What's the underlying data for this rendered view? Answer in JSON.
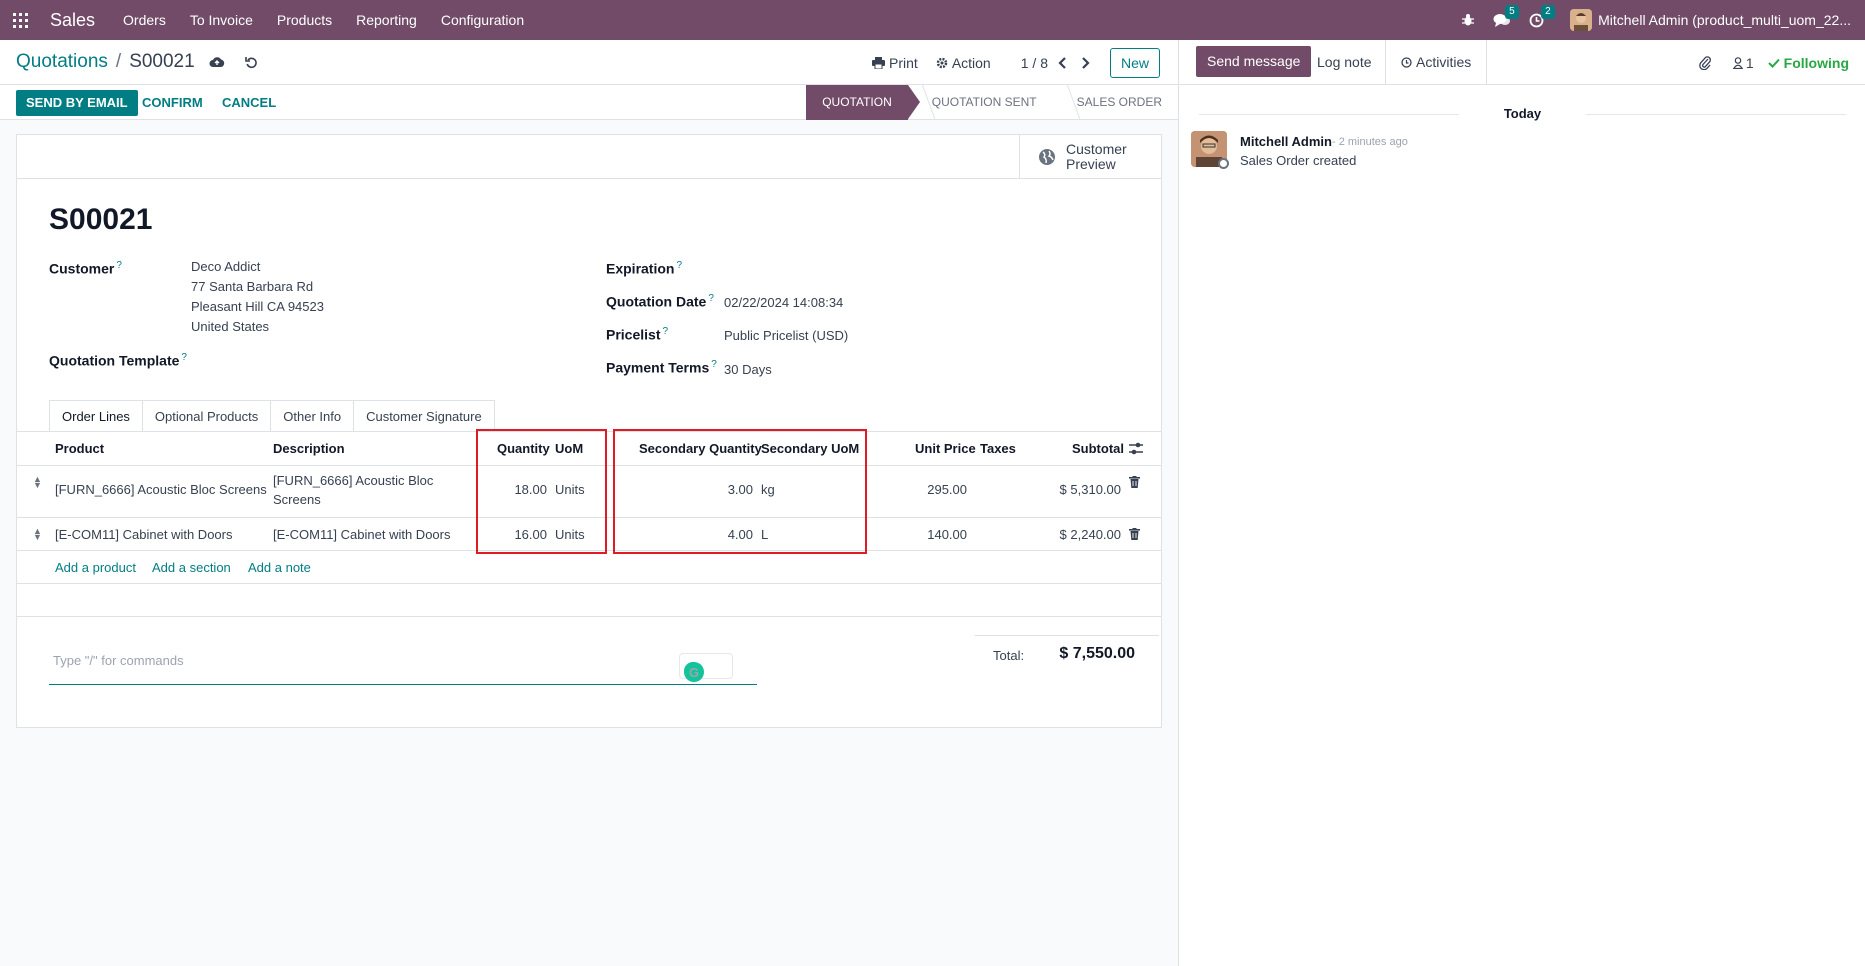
{
  "topbar": {
    "app": "Sales",
    "menu": [
      "Orders",
      "To Invoice",
      "Products",
      "Reporting",
      "Configuration"
    ],
    "messages_count": "5",
    "activities_count": "2",
    "user": "Mitchell Admin (product_multi_uom_22..."
  },
  "control_panel": {
    "breadcrumb_parent": "Quotations",
    "breadcrumb_current": "S00021",
    "print": "Print",
    "action": "Action",
    "pager": "1 / 8",
    "new": "New"
  },
  "statusbar": {
    "send_by_email": "SEND BY EMAIL",
    "confirm": "CONFIRM",
    "cancel": "CANCEL",
    "stages": [
      "QUOTATION",
      "QUOTATION SENT",
      "SALES ORDER"
    ]
  },
  "form": {
    "customer_preview": "Customer Preview",
    "name": "S00021",
    "customer_label": "Customer",
    "customer_lines": [
      "Deco Addict",
      "77 Santa Barbara Rd",
      "Pleasant Hill CA 94523",
      "United States"
    ],
    "template_label": "Quotation Template",
    "expiration_label": "Expiration",
    "quotation_date_label": "Quotation Date",
    "quotation_date": "02/22/2024 14:08:34",
    "pricelist_label": "Pricelist",
    "pricelist": "Public Pricelist (USD)",
    "payment_terms_label": "Payment Terms",
    "payment_terms": "30 Days",
    "help_mark": "?"
  },
  "tabs": [
    "Order Lines",
    "Optional Products",
    "Other Info",
    "Customer Signature"
  ],
  "order_lines": {
    "headers": {
      "product": "Product",
      "description": "Description",
      "quantity": "Quantity",
      "uom": "UoM",
      "secondary_quantity": "Secondary Quantity",
      "secondary_uom": "Secondary UoM",
      "unit_price": "Unit Price",
      "taxes": "Taxes",
      "subtotal": "Subtotal"
    },
    "rows": [
      {
        "product": "[FURN_6666] Acoustic Bloc Screens",
        "description_1": "[FURN_6666] Acoustic Bloc",
        "description_2": "Screens",
        "quantity": "18.00",
        "uom": "Units",
        "secondary_quantity": "3.00",
        "secondary_uom": "kg",
        "unit_price": "295.00",
        "taxes": "",
        "subtotal": "$ 5,310.00"
      },
      {
        "product": "[E-COM11] Cabinet with Doors",
        "description_1": "[E-COM11] Cabinet with Doors",
        "description_2": "",
        "quantity": "16.00",
        "uom": "Units",
        "secondary_quantity": "4.00",
        "secondary_uom": "L",
        "unit_price": "140.00",
        "taxes": "",
        "subtotal": "$ 2,240.00"
      }
    ],
    "add_product": "Add a product",
    "add_section": "Add a section",
    "add_note": "Add a note"
  },
  "note_placeholder": "Type \"/\" for commands",
  "totals": {
    "label": "Total:",
    "value": "$ 7,550.00"
  },
  "chatter": {
    "send_message": "Send message",
    "log_note": "Log note",
    "activities": "Activities",
    "followers_count": "1",
    "following": "Following",
    "today": "Today",
    "message": {
      "author": "Mitchell Admin",
      "time": "- 2 minutes ago",
      "body": "Sales Order created"
    }
  },
  "colors": {
    "brand": "#714b67",
    "accent": "#017e84",
    "highlight": "#e01b24",
    "following": "#28a745"
  }
}
